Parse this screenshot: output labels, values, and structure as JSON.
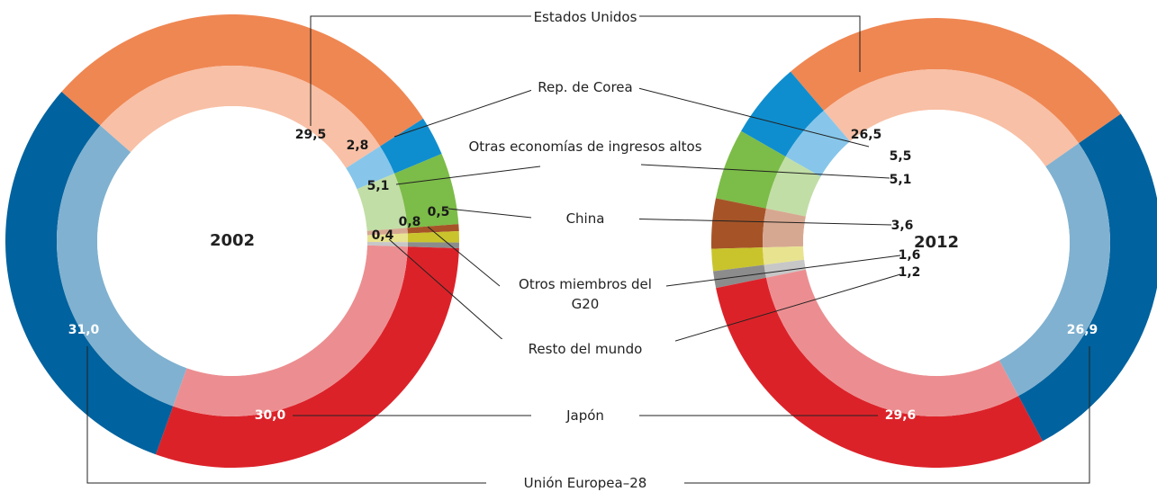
{
  "chart_data": {
    "type": "pie",
    "categories": [
      "Estados Unidos",
      "Rep. de Corea",
      "Otras economías de ingresos altos",
      "China",
      "Otros miembros del G20",
      "Resto del mundo",
      "Japón",
      "Unión Europea–28"
    ],
    "colors": [
      "#ef8753",
      "#0f8ecf",
      "#7cbc48",
      "#a65427",
      "#c9c42c",
      "#8c8c8c",
      "#dc2229",
      "#00629e"
    ],
    "inner_colors": [
      "#f8c0a6",
      "#87c6ea",
      "#c1dea6",
      "#d7a891",
      "#e8e38f",
      "#c7c7c7",
      "#ec8e91",
      "#80b1d0"
    ],
    "series": [
      {
        "name": "2002",
        "values": [
          29.5,
          2.8,
          5.1,
          0.5,
          0.8,
          0.4,
          30.0,
          31.0
        ],
        "value_labels": [
          "29,5",
          "2,8",
          "5,1",
          "0,5",
          "0,8",
          "0,4",
          "30,0",
          "31,0"
        ]
      },
      {
        "name": "2012",
        "values": [
          26.5,
          5.5,
          5.1,
          3.6,
          1.6,
          1.2,
          29.6,
          26.9
        ],
        "value_labels": [
          "26,5",
          "5,5",
          "5,1",
          "3,6",
          "1,6",
          "1,2",
          "29,6",
          "26,9"
        ]
      }
    ]
  }
}
